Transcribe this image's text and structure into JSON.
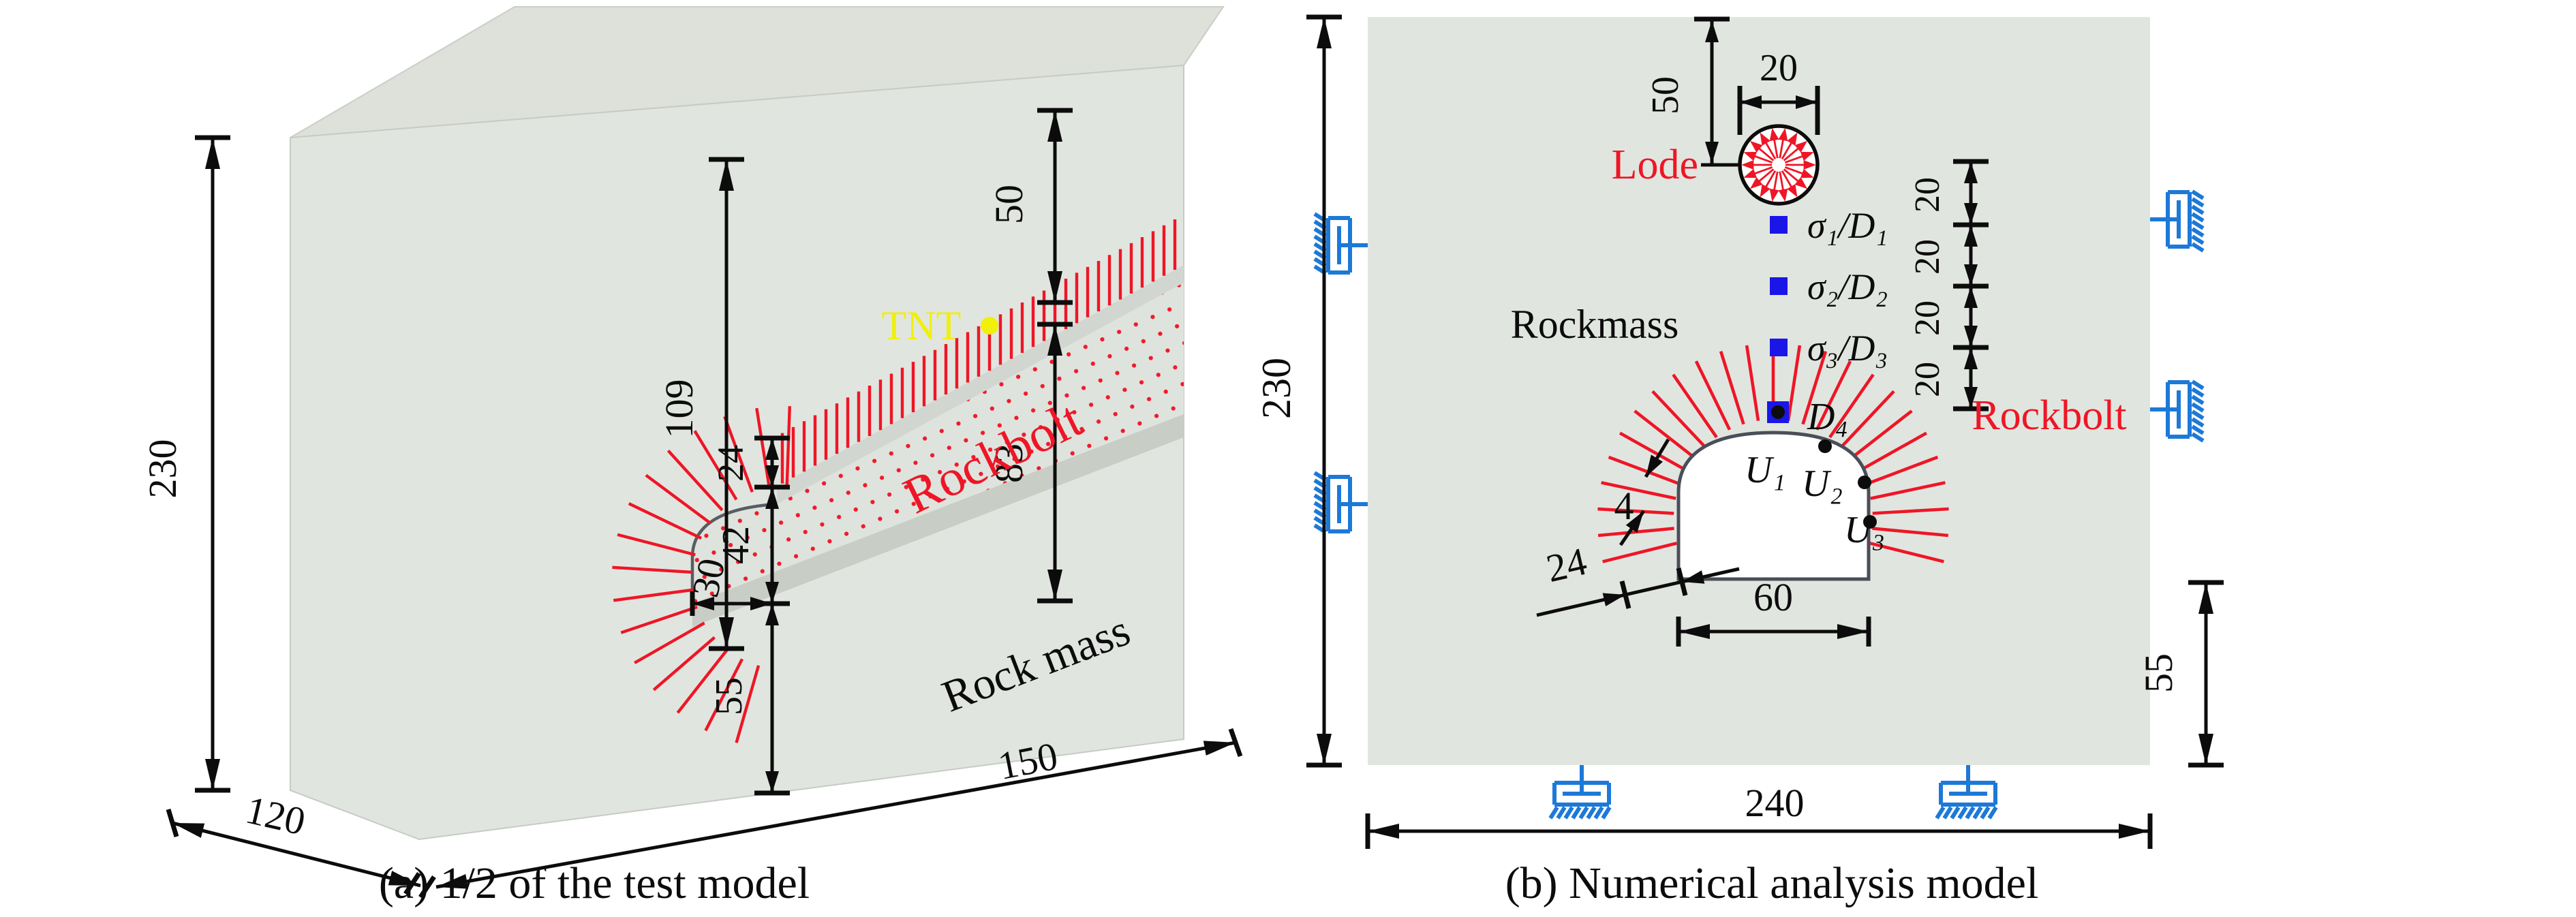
{
  "figure": {
    "caption_a": "(a) 1/2 of the test model",
    "caption_b": "(b) Numerical analysis model"
  },
  "panel_a": {
    "labels": {
      "tnt": "TNT",
      "rockbolt": "Rockbolt",
      "rockmass": "Rock mass"
    },
    "dims": {
      "block_height": "230",
      "top_to_crown": "109",
      "top_to_charge": "50",
      "charge_to_crown": "83",
      "bolt_length": "24",
      "tunnel_height": "42",
      "half_width": "30",
      "below_floor": "55",
      "block_depth": "120",
      "block_length": "150"
    }
  },
  "panel_b": {
    "labels": {
      "lode": "Lode",
      "rockmass": "Rockmass",
      "rockbolt": "Rockbolt",
      "s1": "σ₁/D₁",
      "s2": "σ₂/D₂",
      "s3": "σ₃/D₃",
      "d4": "D₄",
      "u1": "U₁",
      "u2": "U₂",
      "u3": "U₃"
    },
    "dims": {
      "lode_depth": "50",
      "lode_diameter": "20",
      "spacing": [
        "20",
        "20",
        "20",
        "20"
      ],
      "bolt_spacing": "4",
      "bolt_length": "24",
      "tunnel_width": "60",
      "domain_height": "230",
      "domain_width": "240",
      "below_floor": "55"
    }
  },
  "colors": {
    "ink": "#0c0c0c",
    "red": "#ee1626",
    "blue_square": "#1a16e8",
    "support_blue": "#1c79d8",
    "tnt_yellow": "#f0f00a",
    "rock_fill": "#e1e5df"
  }
}
